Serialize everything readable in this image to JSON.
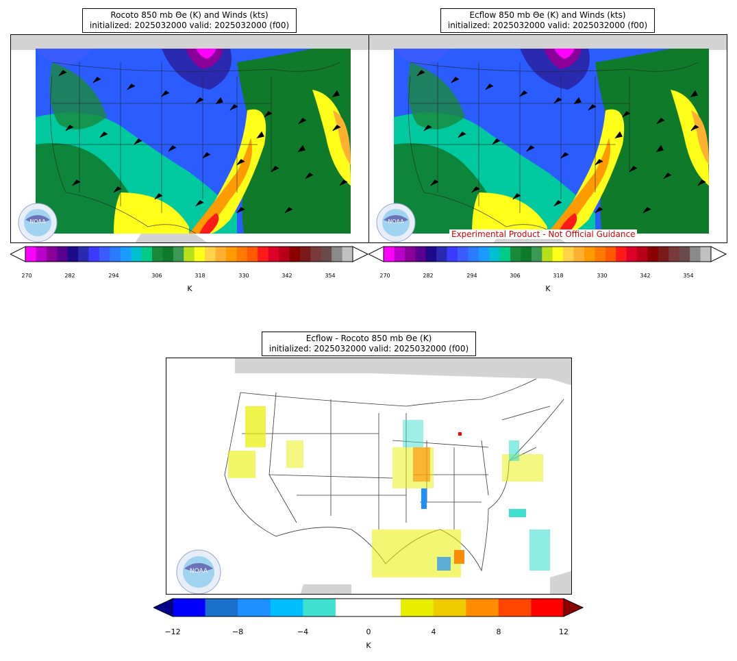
{
  "panels": [
    {
      "id": "rocoto",
      "title_line1": "Rocoto 850 mb Θe (K) and Winds (kts)",
      "title_line2": "initialized: 2025032000 valid: 2025032000 (f00)"
    },
    {
      "id": "ecflow",
      "title_line1": "Ecflow 850 mb Θe (K) and Winds (kts)",
      "title_line2": "initialized: 2025032000 valid: 2025032000 (f00)"
    },
    {
      "id": "diff",
      "title_line1": "Ecflow - Rocoto 850 mb Θe (K)",
      "title_line2": "initialized: 2025032000 valid: 2025032000 (f00)"
    }
  ],
  "disclaimer": "Experimental Product - Not Official Guidance",
  "theta_colorbar": {
    "unit": "K",
    "ticks": [
      "270",
      "282",
      "294",
      "306",
      "318",
      "330",
      "342",
      "354"
    ],
    "colors": [
      "#ff00ff",
      "#bb00cc",
      "#8a0099",
      "#5a0090",
      "#1c0a8a",
      "#2a2ab0",
      "#3b3bff",
      "#3a5cff",
      "#2b7bff",
      "#1b9bff",
      "#00bfd0",
      "#00cc88",
      "#1a8a3a",
      "#0f7a2a",
      "#3a9a55",
      "#b8e01a",
      "#ffff1a",
      "#ffd24a",
      "#ffb030",
      "#ff9a00",
      "#ff7a00",
      "#ff5a00",
      "#ff1a1a",
      "#dd0028",
      "#b80018",
      "#8a0000",
      "#7a1a1a",
      "#7a3a3a",
      "#6a4a4a",
      "#8a8a8a",
      "#c0c0c0"
    ]
  },
  "diff_colorbar": {
    "unit": "K",
    "ticks": [
      "−12",
      "−8",
      "−4",
      "0",
      "4",
      "8",
      "12"
    ],
    "colors": [
      "#0000ff",
      "#1b70cc",
      "#1e90ff",
      "#00bfff",
      "#40e0d0",
      "#ffffff",
      "#ffffff",
      "#e8ee00",
      "#eecc00",
      "#ff8c00",
      "#ff4500",
      "#ff0000"
    ],
    "under_color": "#00008b",
    "over_color": "#8b0000"
  },
  "logo_text": "NOAA"
}
